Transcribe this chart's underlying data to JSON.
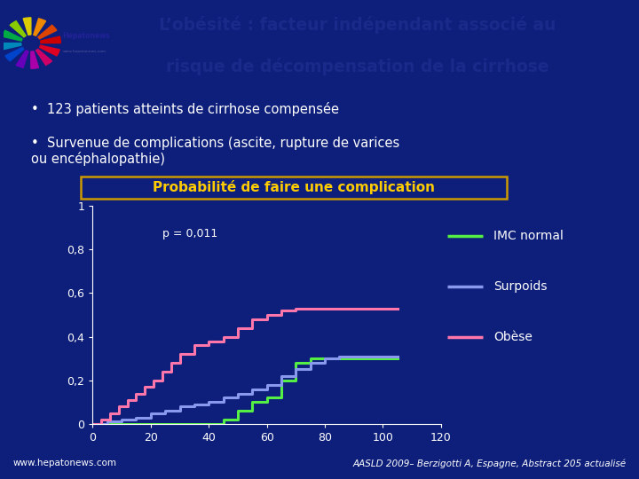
{
  "title_line1": "L’obésité : facteur indépendant associé au",
  "title_line2": "risque de décompensation de la cirrhose",
  "bullet1": "123 patients atteints de cirrhose compensée",
  "bullet2": "Survenue de complications (ascite, rupture de varices\nou encéphalopathie)",
  "chart_title": "Probabilité de faire une complication",
  "p_value": "p = 0,011",
  "footer_left": "www.hepatonews.com",
  "footer_right": "AASLD 2009– Berzigotti A, Espagne, Abstract 205 actualisé",
  "bg_color": "#0d1f7a",
  "header_bg": "#d9e4f0",
  "plot_bg": "#0d1f7a",
  "legend_colors": [
    "#55ee44",
    "#8899ee",
    "#ff77aa"
  ],
  "legend_entries": [
    "IMC normal",
    "Surpoids",
    "Obèse"
  ],
  "imc_normal_x": [
    0,
    45,
    45,
    50,
    50,
    55,
    55,
    60,
    60,
    65,
    65,
    70,
    70,
    75,
    75,
    80,
    80,
    105
  ],
  "imc_normal_y": [
    0.0,
    0.0,
    0.02,
    0.02,
    0.06,
    0.06,
    0.1,
    0.1,
    0.12,
    0.12,
    0.2,
    0.2,
    0.28,
    0.28,
    0.3,
    0.3,
    0.3,
    0.3
  ],
  "surpoids_x": [
    0,
    5,
    5,
    10,
    10,
    15,
    15,
    20,
    20,
    25,
    25,
    30,
    30,
    35,
    35,
    40,
    40,
    45,
    45,
    50,
    50,
    55,
    55,
    60,
    60,
    65,
    65,
    70,
    70,
    75,
    75,
    80,
    80,
    85,
    85,
    105
  ],
  "surpoids_y": [
    0,
    0,
    0.01,
    0.01,
    0.02,
    0.02,
    0.03,
    0.03,
    0.05,
    0.05,
    0.06,
    0.06,
    0.08,
    0.08,
    0.09,
    0.09,
    0.1,
    0.1,
    0.12,
    0.12,
    0.14,
    0.14,
    0.16,
    0.16,
    0.18,
    0.18,
    0.22,
    0.22,
    0.25,
    0.25,
    0.28,
    0.28,
    0.3,
    0.3,
    0.31,
    0.31
  ],
  "obese_x": [
    0,
    3,
    3,
    6,
    6,
    9,
    9,
    12,
    12,
    15,
    15,
    18,
    18,
    21,
    21,
    24,
    24,
    27,
    27,
    30,
    30,
    35,
    35,
    40,
    40,
    45,
    45,
    50,
    50,
    55,
    55,
    60,
    60,
    65,
    65,
    70,
    70,
    75,
    75,
    105
  ],
  "obese_y": [
    0,
    0,
    0.02,
    0.02,
    0.05,
    0.05,
    0.08,
    0.08,
    0.11,
    0.11,
    0.14,
    0.14,
    0.17,
    0.17,
    0.2,
    0.2,
    0.24,
    0.24,
    0.28,
    0.28,
    0.32,
    0.32,
    0.36,
    0.36,
    0.38,
    0.38,
    0.4,
    0.4,
    0.44,
    0.44,
    0.48,
    0.48,
    0.5,
    0.5,
    0.52,
    0.52,
    0.53,
    0.53,
    0.53,
    0.53
  ],
  "xlim": [
    0,
    120
  ],
  "ylim": [
    0,
    1.0
  ],
  "xticks": [
    0,
    20,
    40,
    60,
    80,
    100,
    120
  ],
  "yticks": [
    0,
    0.2,
    0.4,
    0.6,
    0.8,
    1.0
  ],
  "ytick_labels": [
    "0",
    "0,2",
    "0,4",
    "0,6",
    "0,8",
    "1"
  ]
}
